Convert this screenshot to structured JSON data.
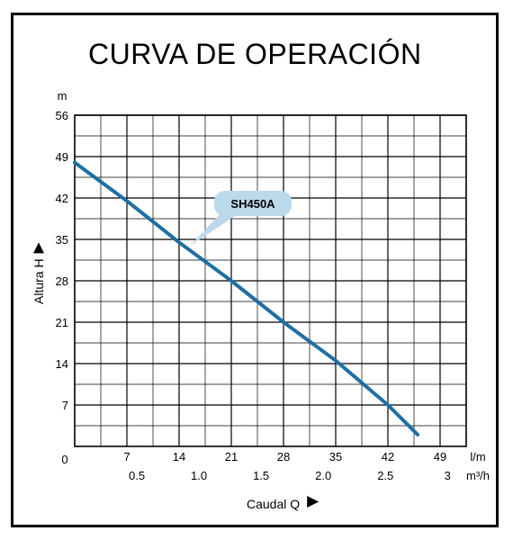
{
  "title": "CURVA DE OPERACIÓN",
  "colors": {
    "curve": "#1f6fa3",
    "callout": "#bcd9ec",
    "grid": "#000000"
  },
  "chart_data": {
    "type": "line",
    "title": "CURVA DE OPERACIÓN",
    "xlabel": "Caudal Q",
    "ylabel": "Altura H",
    "y_unit": "m",
    "x_unit_primary": "l/m",
    "x_unit_secondary": "m³/h",
    "xlim": [
      0,
      52.5
    ],
    "ylim": [
      0,
      56
    ],
    "grid": true,
    "y_ticks": [
      "7",
      "14",
      "21",
      "28",
      "35",
      "42",
      "49",
      "56"
    ],
    "y_tick_values": [
      7,
      14,
      21,
      28,
      35,
      42,
      49,
      56
    ],
    "x_ticks_primary": [
      "7",
      "14",
      "21",
      "28",
      "35",
      "42",
      "49"
    ],
    "x_tick_values_primary": [
      7,
      14,
      21,
      28,
      35,
      42,
      49
    ],
    "x_ticks_secondary": [
      "0.5",
      "1.0",
      "1.5",
      "2.0",
      "2.5",
      "3"
    ],
    "x_tick_values_secondary": [
      0.5,
      1.0,
      1.5,
      2.0,
      2.5,
      3
    ],
    "origin_label": "0",
    "series": [
      {
        "name": "SH450A",
        "x": [
          0,
          7,
          10,
          14,
          21,
          28,
          35,
          42,
          46
        ],
        "y": [
          48,
          41.5,
          38.5,
          34.5,
          28,
          21,
          14.5,
          7,
          2
        ]
      }
    ],
    "annotations": [
      {
        "text": "SH450A",
        "x": 14,
        "y": 34.5
      }
    ]
  }
}
